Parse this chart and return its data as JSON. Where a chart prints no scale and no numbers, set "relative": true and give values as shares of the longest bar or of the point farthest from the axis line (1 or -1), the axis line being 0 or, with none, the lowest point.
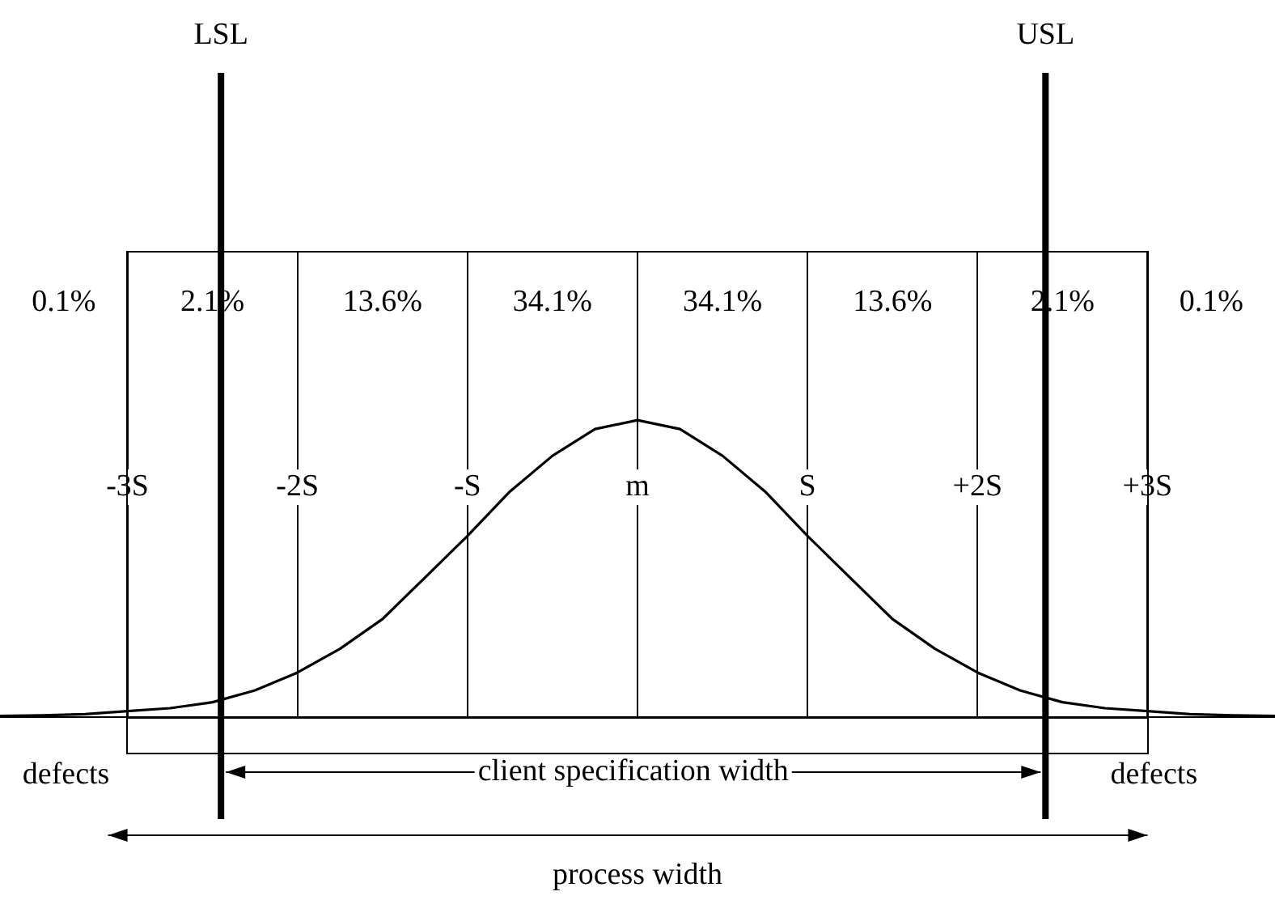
{
  "chart_data": {
    "type": "line",
    "relative": true,
    "marker": "none",
    "grid": "x",
    "legend": false,
    "xlim": [
      -3.75,
      3.75
    ],
    "xticks": [
      {
        "value": -3,
        "label": "-3S"
      },
      {
        "value": -2,
        "label": "-2S"
      },
      {
        "value": -1,
        "label": "-S"
      },
      {
        "value": 0,
        "label": "m"
      },
      {
        "value": 1,
        "label": "S"
      },
      {
        "value": 2,
        "label": "+2S"
      },
      {
        "value": 3,
        "label": "+3S"
      }
    ],
    "series": [
      {
        "color": "#000000",
        "x": [
          -3.75,
          -3.5,
          -3.25,
          -3,
          -2.75,
          -2.5,
          -2.25,
          -2,
          -1.75,
          -1.5,
          -1.25,
          -1,
          -0.75,
          -0.5,
          -0.25,
          0,
          0.25,
          0.5,
          0.75,
          1,
          1.25,
          1.5,
          1.75,
          2,
          2.25,
          2.5,
          2.75,
          3,
          3.25,
          3.5,
          3.75
        ],
        "values": [
          0.004,
          0.006,
          0.01,
          0.02,
          0.03,
          0.05,
          0.09,
          0.15,
          0.23,
          0.33,
          0.47,
          0.61,
          0.76,
          0.88,
          0.97,
          1,
          0.97,
          0.88,
          0.76,
          0.61,
          0.47,
          0.33,
          0.23,
          0.15,
          0.09,
          0.05,
          0.03,
          0.02,
          0.01,
          0.006,
          0.004
        ]
      }
    ],
    "ref_lines": [
      {
        "axis": "x",
        "value": -2.45,
        "label": "LSL"
      },
      {
        "axis": "x",
        "value": 2.4,
        "label": "USL"
      }
    ],
    "annotations": [
      "0.1%",
      "2.1%",
      "13.6%",
      "34.1%",
      "34.1%",
      "13.6%",
      "2.1%",
      "0.1%",
      "defects",
      "defects",
      "client specification width",
      "process width"
    ]
  }
}
